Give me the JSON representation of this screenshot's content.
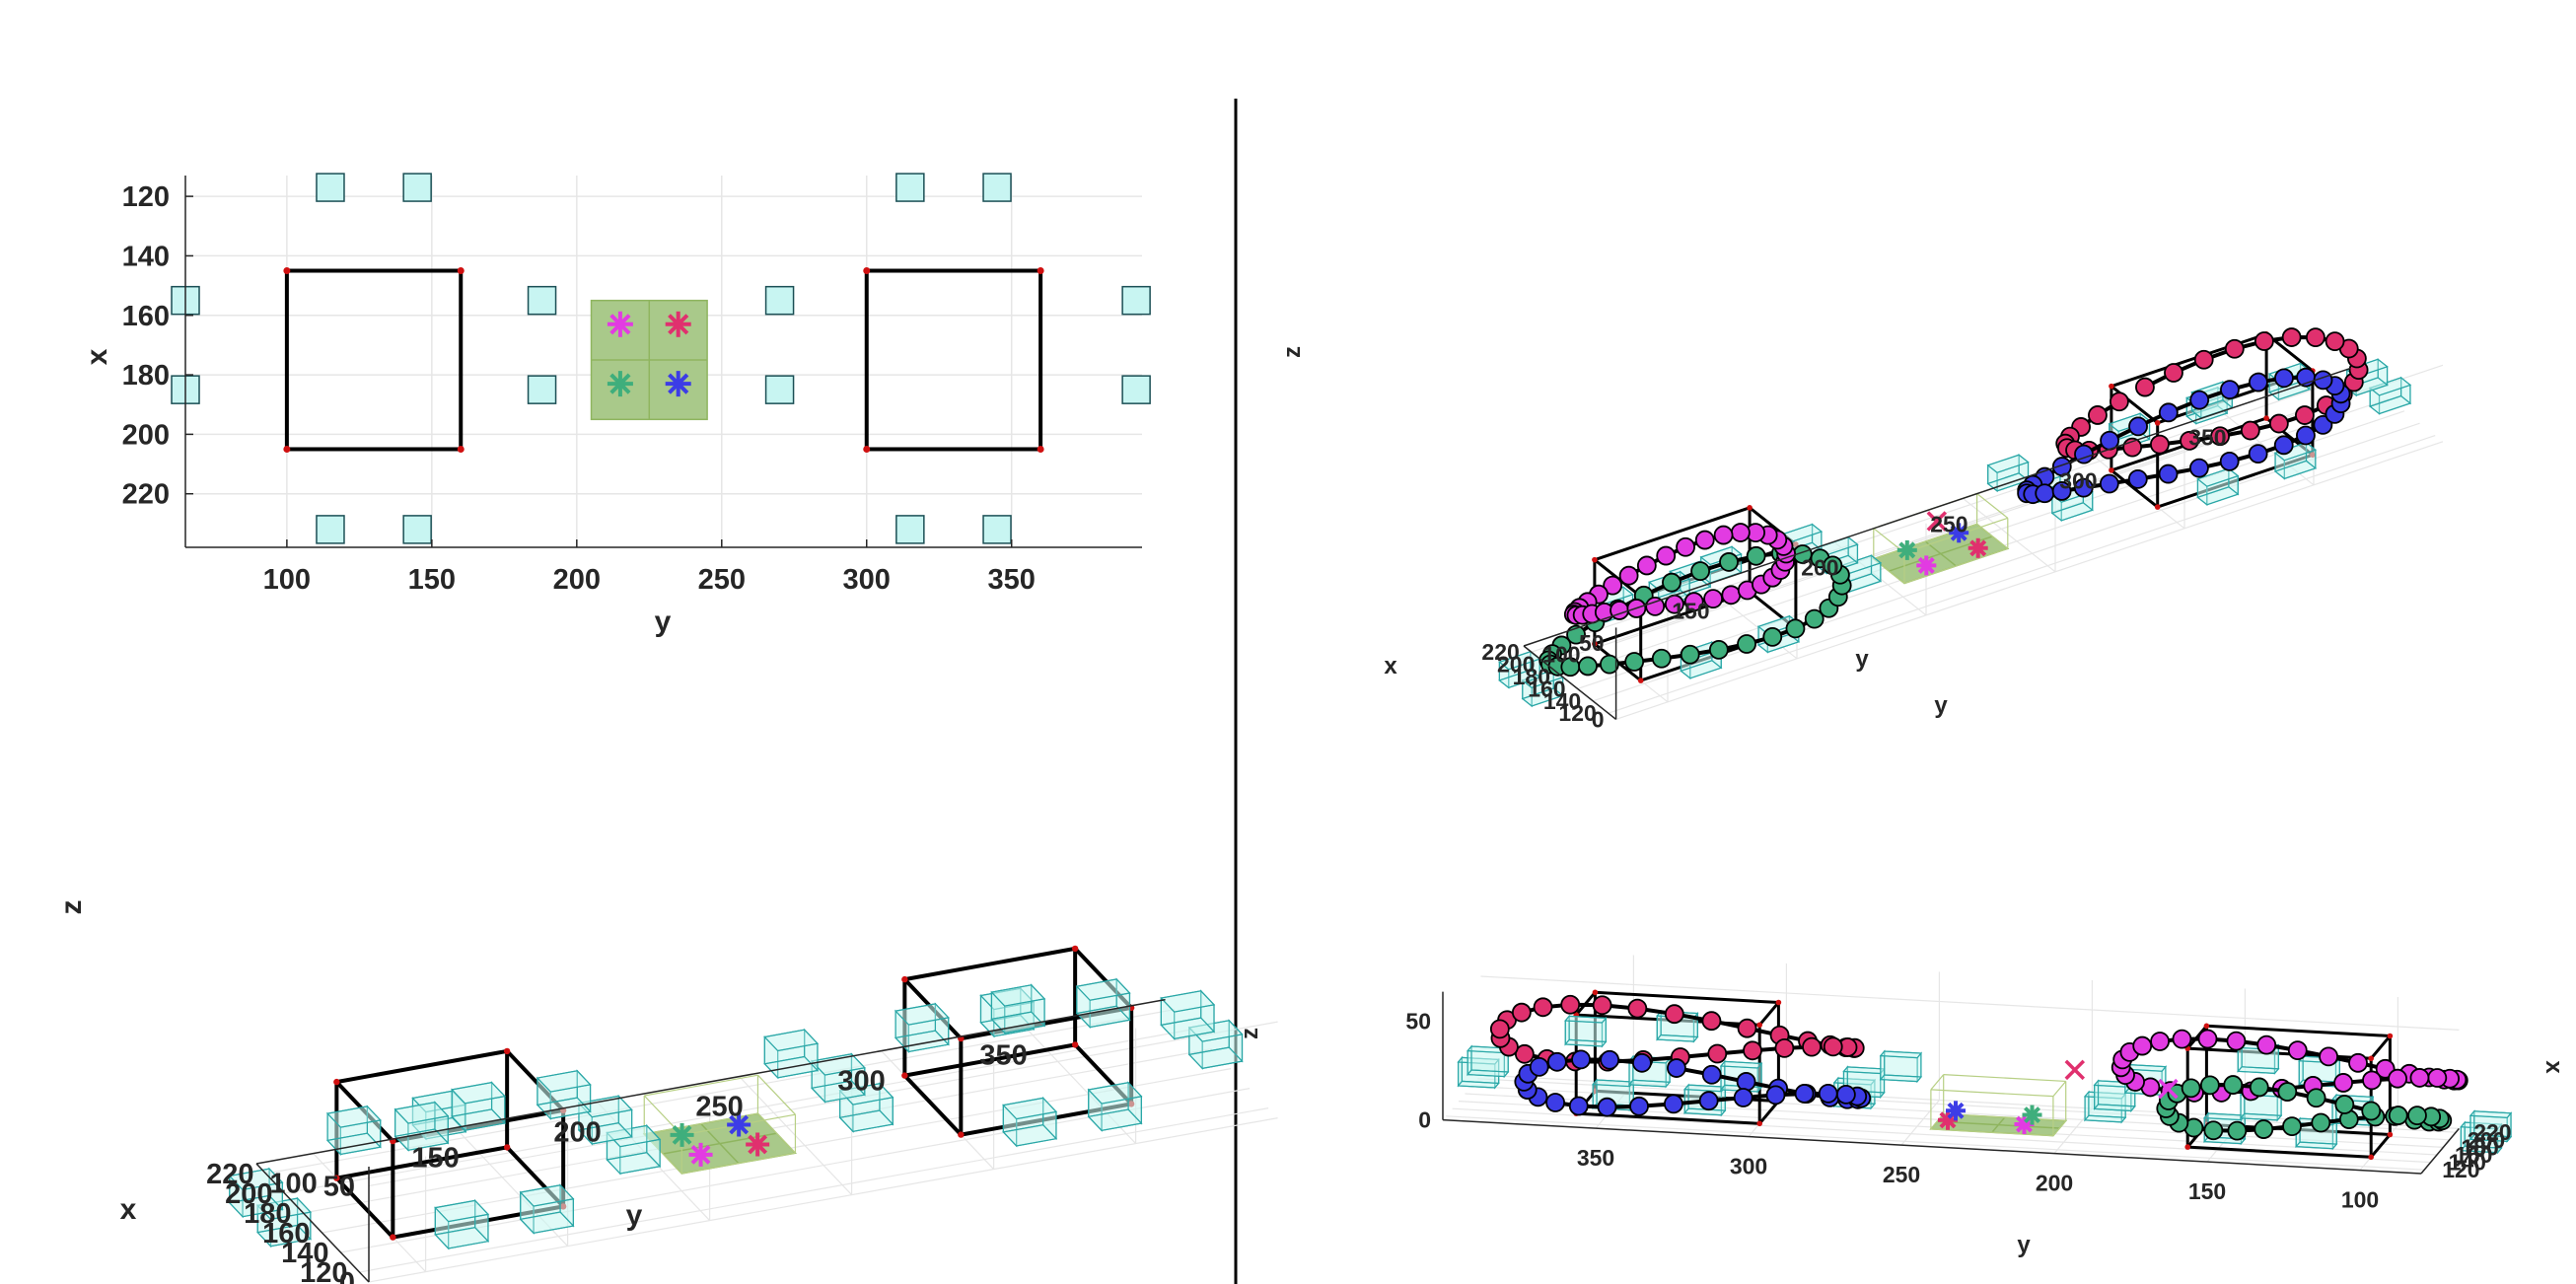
{
  "colors": {
    "background": "#ffffff",
    "grid": "#e6e6e6",
    "axis": "#262626",
    "obstacle_face": "#c8f5f2",
    "obstacle_edge": "#2aa7a7",
    "room_edge": "#000000",
    "room_corner": "#d01010",
    "goal_face": "#a9c98a",
    "goal_edge": "#8fb55f",
    "agent_magenta": "#e23be2",
    "agent_crimson": "#e0306e",
    "agent_green": "#3fae7c",
    "agent_blue": "#3c3ce6"
  },
  "icons": {
    "start_marker": "asterisk",
    "end_marker": "x-cross",
    "waypoint_marker": "filled-circle"
  },
  "chart_data": [
    {
      "id": "top-view",
      "type": "scatter",
      "view": "top-down 2D projection",
      "xlabel": "y",
      "ylabel": "x",
      "xlim": [
        65,
        395
      ],
      "ylim": [
        113,
        238
      ],
      "x_reversed_vertical": true,
      "xticks": [
        "100",
        "150",
        "200",
        "250",
        "300",
        "350"
      ],
      "yticks": [
        "120",
        "140",
        "160",
        "180",
        "200",
        "220"
      ],
      "grid": true,
      "rooms": [
        {
          "y": [
            100,
            160
          ],
          "x": [
            145,
            205
          ]
        },
        {
          "y": [
            300,
            360
          ],
          "x": [
            145,
            205
          ]
        }
      ],
      "goal_region": {
        "y": [
          205,
          245
        ],
        "x": [
          155,
          195
        ]
      },
      "obstacles_yx": [
        [
          115,
          117
        ],
        [
          145,
          117
        ],
        [
          65,
          155
        ],
        [
          65,
          185
        ],
        [
          115,
          232
        ],
        [
          145,
          232
        ],
        [
          188,
          155
        ],
        [
          188,
          185
        ],
        [
          270,
          155
        ],
        [
          270,
          185
        ],
        [
          315,
          117
        ],
        [
          345,
          117
        ],
        [
          315,
          232
        ],
        [
          345,
          232
        ],
        [
          393,
          155
        ],
        [
          393,
          185
        ]
      ],
      "start_markers": [
        {
          "y": 215,
          "x": 163,
          "color": "magenta"
        },
        {
          "y": 235,
          "x": 163,
          "color": "crimson"
        },
        {
          "y": 215,
          "x": 183,
          "color": "green"
        },
        {
          "y": 235,
          "x": 183,
          "color": "blue"
        }
      ]
    },
    {
      "id": "iso-view-static",
      "type": "scatter",
      "view": "3D perspective, no trajectories",
      "xlabel": "y",
      "ylabel": "x",
      "zlabel": "z",
      "yticks_axis": [
        "100",
        "150",
        "200",
        "250",
        "300",
        "350"
      ],
      "xticks_axis": [
        "120",
        "140",
        "160",
        "180",
        "200",
        "220"
      ],
      "zticks": [
        "0",
        "50"
      ],
      "grid": true
    },
    {
      "id": "iso-view-trajectories-front",
      "type": "line",
      "view": "3D perspective with agent trajectories",
      "xlabel": "y",
      "ylabel": "x",
      "zlabel": "z",
      "yticks_axis": [
        "100",
        "150",
        "200",
        "250",
        "300",
        "350"
      ],
      "xticks_axis": [
        "120",
        "140",
        "160",
        "180",
        "200",
        "220"
      ],
      "zticks": [
        "0",
        "50"
      ],
      "series_colors": [
        "magenta",
        "crimson",
        "green",
        "blue"
      ]
    },
    {
      "id": "iso-view-trajectories-back",
      "type": "line",
      "view": "3D perspective with agent trajectories (opposite side)",
      "xlabel": "y",
      "ylabel": "x",
      "zlabel": "z",
      "yticks_axis": [
        "350",
        "300",
        "250",
        "200",
        "150",
        "100"
      ],
      "xticks_axis": [
        "220",
        "200",
        "180",
        "160",
        "140",
        "120"
      ],
      "zticks": [
        "0",
        "50"
      ],
      "series_colors": [
        "magenta",
        "crimson",
        "green",
        "blue"
      ]
    }
  ]
}
